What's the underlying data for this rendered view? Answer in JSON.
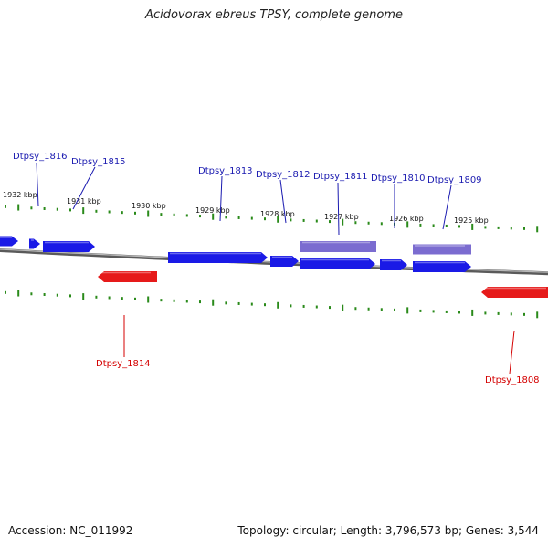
{
  "title": "Acidovorax ebreus TPSY, complete genome",
  "footer": {
    "accession": "Accession: NC_011992",
    "stats": "Topology: circular; Length: 3,796,573 bp; Genes: 3,544"
  },
  "colors": {
    "forward": "#1a1ae6",
    "reverse": "#e61a1a",
    "pseudo": "#7b6cd0",
    "ticks": "#2a8a1a",
    "backbone": "#888888"
  },
  "scale": {
    "ticks_kbp": [
      "1932 kbp",
      "1931 kbp",
      "1930 kbp",
      "1929 kbp",
      "1928 kbp",
      "1927 kbp",
      "1926 kbp",
      "1925 kbp"
    ]
  },
  "genes": [
    {
      "name": "Dtpsy_1816",
      "strand": "forward",
      "color": "#1a1ae6"
    },
    {
      "name": "Dtpsy_1815",
      "strand": "forward",
      "color": "#1a1ae6"
    },
    {
      "name": "Dtpsy_1813",
      "strand": "forward",
      "color": "#1a1ae6"
    },
    {
      "name": "Dtpsy_1812",
      "strand": "forward",
      "color": "#1a1ae6"
    },
    {
      "name": "Dtpsy_1811",
      "strand": "forward",
      "color": "#7b6cd0"
    },
    {
      "name": "Dtpsy_1810",
      "strand": "forward",
      "color": "#1a1ae6"
    },
    {
      "name": "Dtpsy_1809",
      "strand": "forward",
      "color": "#7b6cd0"
    },
    {
      "name": "Dtpsy_1814",
      "strand": "reverse",
      "color": "#e61a1a"
    },
    {
      "name": "Dtpsy_1808",
      "strand": "reverse",
      "color": "#e61a1a"
    }
  ]
}
